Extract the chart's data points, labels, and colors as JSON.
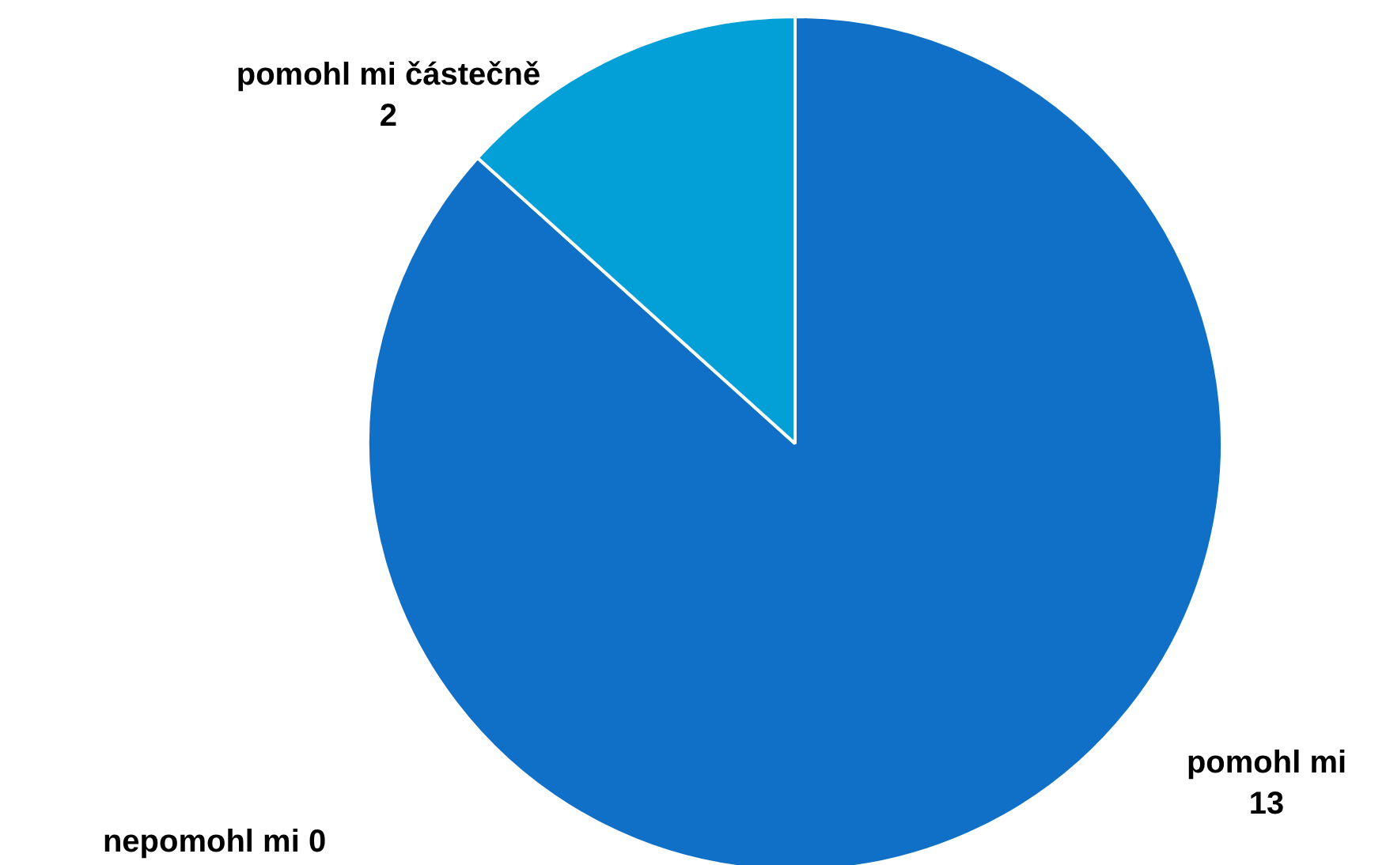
{
  "chart_data": {
    "type": "pie",
    "categories": [
      "pomohl mi",
      "pomohl mi částečně",
      "nepomohl mi"
    ],
    "values": [
      13,
      2,
      0
    ],
    "colors": [
      "#1070c8",
      "#03a0d8",
      "#7fb0e0"
    ],
    "value_labels": [
      "13",
      "2",
      "0"
    ]
  }
}
